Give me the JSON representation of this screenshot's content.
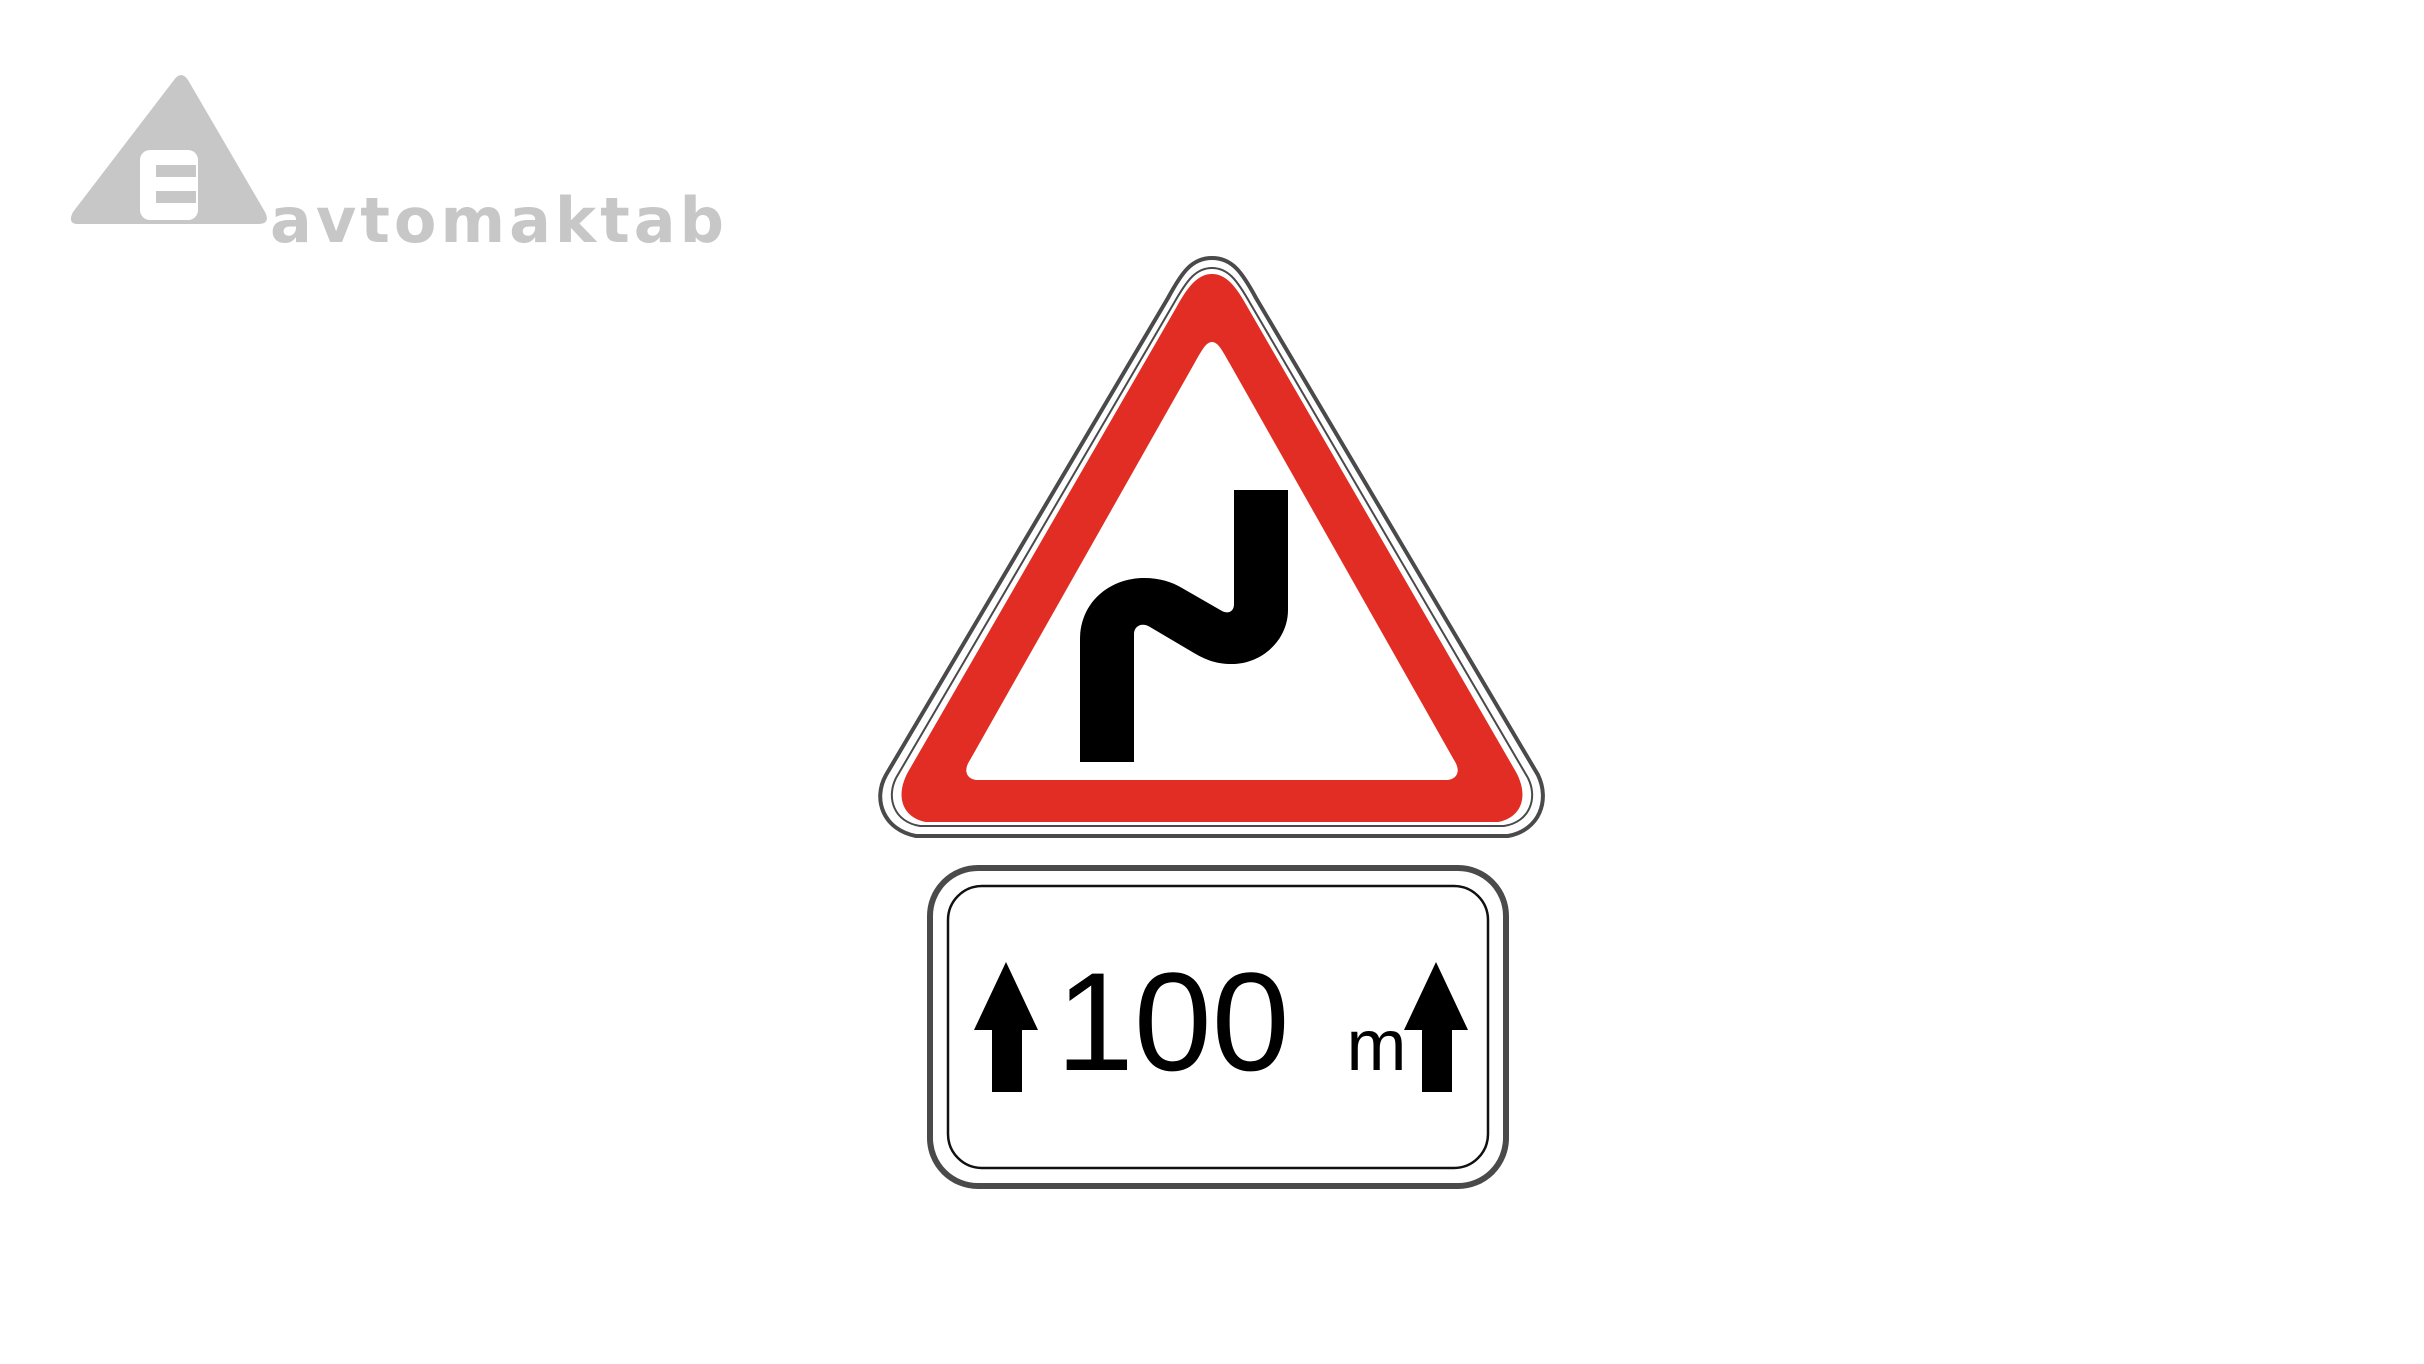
{
  "logo": {
    "letter": "E",
    "wordmark": "avtomaktab",
    "color": "#c6c7c6"
  },
  "warning_sign": {
    "meaning": "double-bend-first-to-right",
    "border_color": "#e12d23",
    "symbol_color": "#000000"
  },
  "distance_plate": {
    "number": "100",
    "unit": "m",
    "left_icon": "arrow-up-icon",
    "right_icon": "arrow-up-icon"
  }
}
